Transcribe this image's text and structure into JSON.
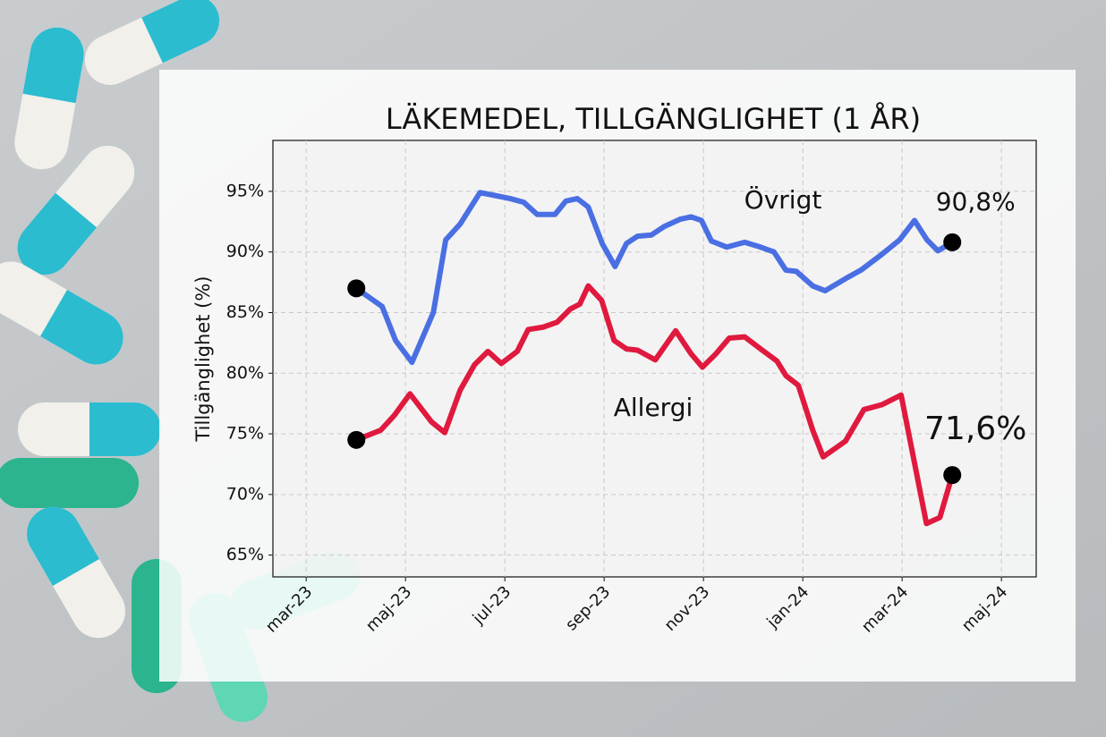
{
  "chart_data": {
    "type": "line",
    "title": "LÄKEMEDEL, TILLGÄNGLIGHET (1 ÅR)",
    "y_label": "Tillgänglighet (%)",
    "xlim": [
      -0.67,
      14.7
    ],
    "xticks": [
      {
        "value": 0,
        "label": "mar-23"
      },
      {
        "value": 2,
        "label": "maj-23"
      },
      {
        "value": 4,
        "label": "jul-23"
      },
      {
        "value": 6,
        "label": "sep-23"
      },
      {
        "value": 8,
        "label": "nov-23"
      },
      {
        "value": 10,
        "label": "jan-24"
      },
      {
        "value": 12,
        "label": "mar-24"
      },
      {
        "value": 14,
        "label": "maj-24"
      }
    ],
    "ylim": [
      63.2,
      99.2
    ],
    "yticks": [
      {
        "value": 65,
        "label": "65%"
      },
      {
        "value": 70,
        "label": "70%"
      },
      {
        "value": 75,
        "label": "75%"
      },
      {
        "value": 80,
        "label": "80%"
      },
      {
        "value": 85,
        "label": "85%"
      },
      {
        "value": 90,
        "label": "90%"
      },
      {
        "value": 95,
        "label": "95%"
      }
    ],
    "grid": true,
    "series": [
      {
        "name": "Övrigt",
        "color": "#4a6fe3",
        "x": [
          1.01,
          1.53,
          1.8,
          2.13,
          2.56,
          2.81,
          3.1,
          3.5,
          3.75,
          4.11,
          4.38,
          4.65,
          5.01,
          5.23,
          5.46,
          5.68,
          5.96,
          6.22,
          6.45,
          6.67,
          6.95,
          7.21,
          7.53,
          7.75,
          7.96,
          8.16,
          8.47,
          8.83,
          9.15,
          9.42,
          9.66,
          9.87,
          10.2,
          10.45,
          10.86,
          11.17,
          11.59,
          11.95,
          12.25,
          12.5,
          12.72,
          13.01
        ],
        "values": [
          87.0,
          85.5,
          82.7,
          80.9,
          85.0,
          91.0,
          92.3,
          94.9,
          94.7,
          94.4,
          94.1,
          93.1,
          93.1,
          94.2,
          94.4,
          93.7,
          90.7,
          88.8,
          90.7,
          91.3,
          91.4,
          92.1,
          92.7,
          92.9,
          92.6,
          90.9,
          90.4,
          90.8,
          90.4,
          90.0,
          88.5,
          88.4,
          87.2,
          86.8,
          87.8,
          88.5,
          89.8,
          91.0,
          92.6,
          91.0,
          90.1,
          90.8
        ],
        "value_labels": [
          null,
          null,
          null,
          null,
          null,
          null,
          null,
          null,
          null,
          null,
          null,
          null,
          null,
          null,
          null,
          null,
          null,
          null,
          null,
          null,
          null,
          null,
          null,
          null,
          null,
          null,
          null,
          null,
          null,
          null,
          null,
          null,
          null,
          null,
          null,
          null,
          null,
          null,
          null,
          null,
          null,
          "90,8%"
        ]
      },
      {
        "name": "Allergi",
        "color": "#e0193f",
        "x": [
          1.01,
          1.5,
          1.77,
          2.09,
          2.52,
          2.79,
          3.1,
          3.39,
          3.66,
          3.93,
          4.25,
          4.47,
          4.77,
          5.05,
          5.32,
          5.51,
          5.68,
          5.95,
          6.2,
          6.45,
          6.67,
          7.03,
          7.44,
          7.75,
          7.98,
          8.25,
          8.52,
          8.83,
          9.15,
          9.48,
          9.66,
          9.91,
          10.2,
          10.41,
          10.86,
          11.23,
          11.59,
          11.98,
          12.49,
          12.76,
          13.01
        ],
        "values": [
          74.5,
          75.3,
          76.5,
          78.3,
          76.0,
          75.1,
          78.6,
          80.7,
          81.8,
          80.8,
          81.8,
          83.6,
          83.8,
          84.2,
          85.3,
          85.7,
          87.2,
          86.0,
          82.7,
          82.0,
          81.9,
          81.1,
          83.5,
          81.6,
          80.5,
          81.6,
          82.9,
          83.0,
          82.0,
          81.0,
          79.8,
          79.0,
          75.3,
          73.1,
          74.4,
          77.0,
          77.4,
          78.2,
          67.6,
          68.1,
          71.6
        ],
        "value_labels": [
          null,
          null,
          null,
          null,
          null,
          null,
          null,
          null,
          null,
          null,
          null,
          null,
          null,
          null,
          null,
          null,
          null,
          null,
          null,
          null,
          null,
          null,
          null,
          null,
          null,
          null,
          null,
          null,
          null,
          null,
          null,
          null,
          null,
          null,
          null,
          null,
          null,
          null,
          null,
          null,
          "71,6%"
        ]
      }
    ]
  }
}
